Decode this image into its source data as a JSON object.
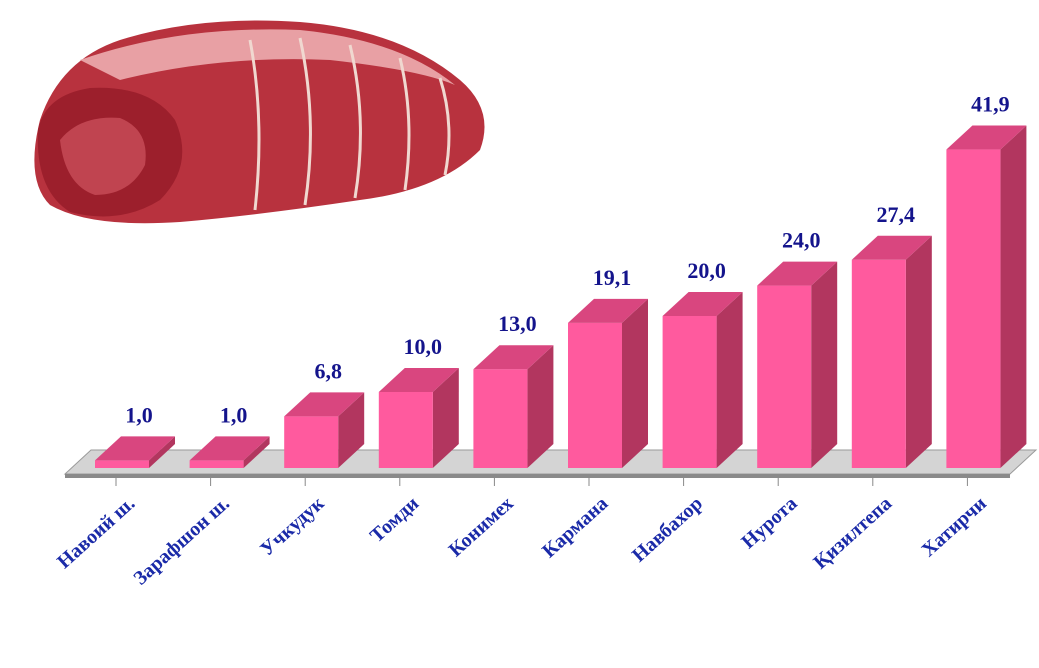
{
  "chart_data": {
    "type": "bar3d",
    "categories": [
      "Навоий ш.",
      "Зарафшон ш.",
      "Учкудук",
      "Томди",
      "Конимех",
      "Кармана",
      "Навбахор",
      "Нурота",
      "Қизилтепа",
      "Хатирчи"
    ],
    "values": [
      1.0,
      1.0,
      6.8,
      10.0,
      13.0,
      19.1,
      20.0,
      24.0,
      27.4,
      41.9
    ],
    "value_labels": [
      "1,0",
      "1,0",
      "6,8",
      "10,0",
      "13,0",
      "19,1",
      "20,0",
      "24,0",
      "27,4",
      "41,9"
    ],
    "color": "#ff5a9e"
  }
}
